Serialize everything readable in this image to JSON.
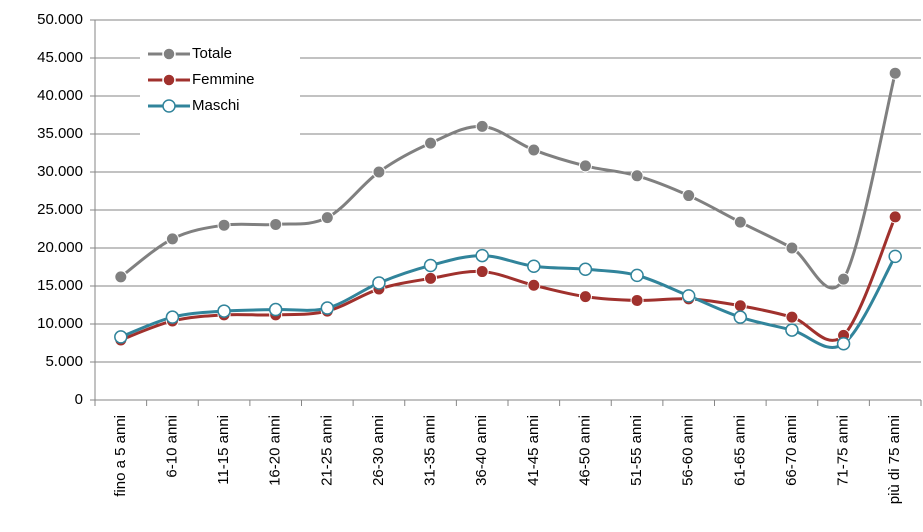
{
  "chart_data": {
    "type": "line",
    "categories": [
      "fino a 5 anni",
      "6-10 anni",
      "11-15 anni",
      "16-20 anni",
      "21-25 anni",
      "26-30 anni",
      "31-35 anni",
      "36-40 anni",
      "41-45 anni",
      "46-50 anni",
      "51-55 anni",
      "56-60 anni",
      "61-65 anni",
      "66-70 anni",
      "71-75 anni",
      "più di 75 anni"
    ],
    "series": [
      {
        "name": "Totale",
        "color": "#808080",
        "values": [
          16200,
          21200,
          23000,
          23100,
          24000,
          30000,
          33800,
          36000,
          32900,
          30800,
          29500,
          26900,
          23400,
          20000,
          15900,
          43000
        ]
      },
      {
        "name": "Femmine",
        "color": "#a0312d",
        "values": [
          7900,
          10400,
          11200,
          11200,
          11700,
          14600,
          16000,
          16900,
          15100,
          13600,
          13100,
          13300,
          12400,
          10900,
          8500,
          24100
        ]
      },
      {
        "name": "Maschi",
        "color": "#31849b",
        "values": [
          8300,
          10900,
          11700,
          11900,
          12100,
          15400,
          17700,
          19000,
          17600,
          17200,
          16400,
          13700,
          10900,
          9200,
          7400,
          18900
        ]
      }
    ],
    "ylim": [
      0,
      50000
    ],
    "yticks": [
      0,
      {
        "value": 5000,
        "label": "5.000"
      },
      {
        "value": 10000,
        "label": "10.000"
      },
      {
        "value": 15000,
        "label": "15.000"
      },
      {
        "value": 20000,
        "label": "20.000"
      },
      {
        "value": 25000,
        "label": "25.000"
      },
      {
        "value": 30000,
        "label": "30.000"
      },
      {
        "value": 35000,
        "label": "35.000"
      },
      {
        "value": 40000,
        "label": "40.000"
      },
      {
        "value": 45000,
        "label": "45.000"
      },
      {
        "value": 50000,
        "label": "50.000"
      }
    ],
    "grid": true,
    "smooth": true,
    "legend": "top-left"
  }
}
